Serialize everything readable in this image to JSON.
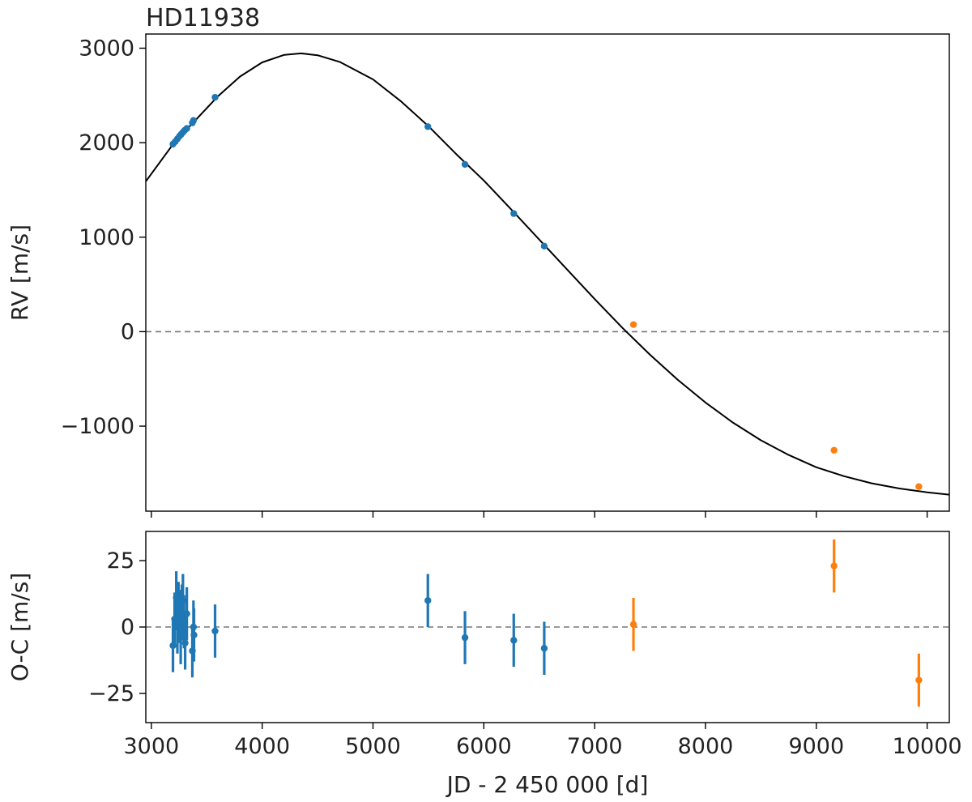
{
  "chart_data": [
    {
      "type": "scatter",
      "title": "HD11938",
      "xlabel": "",
      "ylabel": "RV [m/s]",
      "xlim": [
        2950,
        10200
      ],
      "ylim": [
        -1900,
        3150
      ],
      "yticks": [
        -1000,
        0,
        1000,
        2000,
        3000
      ],
      "yticklabels": [
        "−1000",
        "0",
        "1000",
        "2000",
        "3000"
      ],
      "xticks": [
        3000,
        4000,
        5000,
        6000,
        7000,
        8000,
        9000,
        10000
      ],
      "reference_line": 0,
      "grid": false,
      "series": [
        {
          "color": "#1f77b4",
          "x": [
            3195,
            3215,
            3235,
            3255,
            3270,
            3285,
            3300,
            3320,
            3370,
            3380,
            3575,
            5495,
            5830,
            6270,
            6545
          ],
          "y": [
            1985,
            2010,
            2040,
            2070,
            2090,
            2110,
            2130,
            2150,
            2210,
            2235,
            2480,
            2170,
            1770,
            1250,
            905
          ],
          "yerr": [
            10,
            10,
            10,
            10,
            10,
            10,
            10,
            10,
            10,
            10,
            10,
            10,
            10,
            10,
            10
          ]
        },
        {
          "color": "#ff7f0e",
          "x": [
            7350,
            9160,
            9925
          ],
          "y": [
            75,
            -1255,
            -1640
          ],
          "yerr": [
            10,
            10,
            10
          ]
        }
      ],
      "model_curve": {
        "color": "#000000",
        "x": [
          2950,
          3200,
          3400,
          3600,
          3800,
          4000,
          4200,
          4350,
          4500,
          4700,
          5000,
          5250,
          5500,
          5750,
          6000,
          6250,
          6500,
          6750,
          7000,
          7250,
          7500,
          7750,
          8000,
          8250,
          8500,
          8750,
          9000,
          9250,
          9500,
          9750,
          10000,
          10200
        ],
        "y": [
          1590,
          1990,
          2240,
          2490,
          2700,
          2850,
          2930,
          2945,
          2925,
          2855,
          2670,
          2440,
          2175,
          1880,
          1600,
          1290,
          975,
          660,
          345,
          40,
          -245,
          -510,
          -750,
          -965,
          -1150,
          -1305,
          -1435,
          -1530,
          -1605,
          -1660,
          -1700,
          -1725
        ]
      }
    },
    {
      "type": "scatter",
      "title": "",
      "xlabel": "JD - 2 450 000 [d]",
      "ylabel": "O-C [m/s]",
      "xlim": [
        2950,
        10200
      ],
      "ylim": [
        -36,
        36
      ],
      "yticks": [
        -25,
        0,
        25
      ],
      "yticklabels": [
        "−25",
        "0",
        "25"
      ],
      "xticks": [
        3000,
        4000,
        5000,
        6000,
        7000,
        8000,
        9000,
        10000
      ],
      "xticklabels": [
        "3000",
        "4000",
        "5000",
        "6000",
        "7000",
        "8000",
        "9000",
        "10000"
      ],
      "reference_line": 0,
      "grid": false,
      "series": [
        {
          "color": "#1f77b4",
          "x": [
            3195,
            3210,
            3225,
            3235,
            3245,
            3255,
            3265,
            3275,
            3285,
            3295,
            3305,
            3320,
            3370,
            3380,
            3385,
            3575,
            5495,
            5830,
            6270,
            6545
          ],
          "y": [
            -7,
            3,
            11,
            0,
            7,
            4,
            -4,
            6,
            10,
            2,
            -6,
            5,
            -9,
            0,
            -3,
            -1.5,
            10,
            -4,
            -5,
            -8
          ],
          "yerr": [
            10,
            10,
            10,
            10,
            10,
            10,
            10,
            10,
            10,
            10,
            10,
            10,
            10,
            10,
            10,
            10,
            10,
            10,
            10,
            10
          ]
        },
        {
          "color": "#ff7f0e",
          "x": [
            7350,
            9160,
            9925
          ],
          "y": [
            1,
            23,
            -20
          ],
          "yerr": [
            10,
            10,
            10
          ]
        }
      ]
    }
  ]
}
